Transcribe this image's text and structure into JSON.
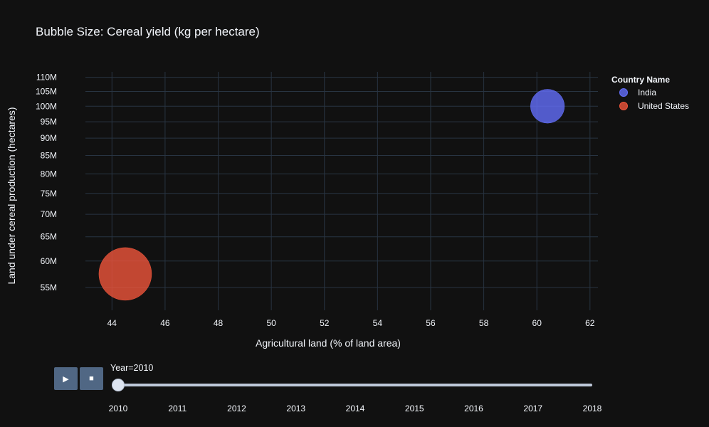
{
  "chart_data": {
    "type": "scatter",
    "title": "Bubble Size: Cereal yield (kg per hectare)",
    "xlabel": "Agricultural land (% of land area)",
    "ylabel": "Land under cereal production (hectares)",
    "y_scale": "log",
    "xlim": [
      43.0,
      62.3
    ],
    "ylim": [
      51000000,
      112000000
    ],
    "x_ticks": [
      44,
      46,
      48,
      50,
      52,
      54,
      56,
      58,
      60,
      62
    ],
    "y_ticks": [
      {
        "value": 55000000,
        "label": "55M"
      },
      {
        "value": 60000000,
        "label": "60M"
      },
      {
        "value": 65000000,
        "label": "65M"
      },
      {
        "value": 70000000,
        "label": "70M"
      },
      {
        "value": 75000000,
        "label": "75M"
      },
      {
        "value": 80000000,
        "label": "80M"
      },
      {
        "value": 85000000,
        "label": "85M"
      },
      {
        "value": 90000000,
        "label": "90M"
      },
      {
        "value": 95000000,
        "label": "95M"
      },
      {
        "value": 100000000,
        "label": "100M"
      },
      {
        "value": 105000000,
        "label": "105M"
      },
      {
        "value": 110000000,
        "label": "110M"
      }
    ],
    "grid": true,
    "legend_title": "Country Name",
    "legend_position": "top-right",
    "series": [
      {
        "name": "India",
        "color": "#636efa",
        "x": 60.4,
        "y": 100000000,
        "size": 2900
      },
      {
        "name": "United States",
        "color": "#ef553b",
        "x": 44.5,
        "y": 57500000,
        "size": 7000
      }
    ]
  },
  "animation": {
    "current_label": "Year=2010",
    "current_index": 0,
    "steps": [
      "2010",
      "2011",
      "2012",
      "2013",
      "2014",
      "2015",
      "2016",
      "2017",
      "2018"
    ],
    "play_icon": "play-icon",
    "stop_icon": "stop-icon"
  }
}
